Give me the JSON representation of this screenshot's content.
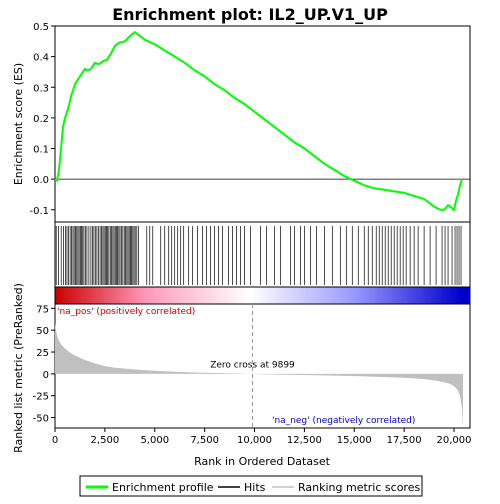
{
  "chart_data": {
    "type": "line",
    "title": "Enrichment plot: IL2_UP.V1_UP",
    "xlabel": "Rank in Ordered Dataset",
    "xlim": [
      0,
      20800
    ],
    "x_ticks": [
      "0",
      "2,500",
      "5,000",
      "7,500",
      "10,000",
      "12,500",
      "15,000",
      "17,500",
      "20,000"
    ],
    "x_tick_values": [
      0,
      2500,
      5000,
      7500,
      10000,
      12500,
      15000,
      17500,
      20000
    ],
    "top_panel": {
      "ylabel": "Enrichment score (ES)",
      "ylim": [
        -0.14,
        0.5
      ],
      "y_ticks": [
        "-0.1",
        "0.0",
        "0.1",
        "0.2",
        "0.3",
        "0.4",
        "0.5"
      ],
      "y_tick_values": [
        -0.1,
        0.0,
        0.1,
        0.2,
        0.3,
        0.4,
        0.5
      ],
      "series": [
        {
          "name": "Enrichment profile",
          "color": "#00ff00",
          "x": [
            0,
            100,
            200,
            300,
            400,
            500,
            600,
            700,
            800,
            900,
            1000,
            1100,
            1200,
            1300,
            1400,
            1500,
            1600,
            1800,
            2000,
            2200,
            2400,
            2600,
            2800,
            3000,
            3200,
            3500,
            3800,
            4000,
            4200,
            4500,
            5000,
            5500,
            6000,
            6500,
            7000,
            7500,
            8000,
            8500,
            9000,
            9500,
            10000,
            10500,
            11000,
            11500,
            12000,
            12500,
            13000,
            13500,
            14000,
            14500,
            15000,
            15500,
            16000,
            16500,
            17000,
            17500,
            18000,
            18500,
            19000,
            19300,
            19500,
            19700,
            19900,
            20000,
            20100,
            20200,
            20300,
            20400
          ],
          "values": [
            0.0,
            -0.005,
            0.03,
            0.1,
            0.17,
            0.2,
            0.22,
            0.24,
            0.27,
            0.29,
            0.31,
            0.32,
            0.33,
            0.34,
            0.35,
            0.36,
            0.355,
            0.36,
            0.38,
            0.375,
            0.385,
            0.39,
            0.41,
            0.435,
            0.445,
            0.45,
            0.47,
            0.48,
            0.47,
            0.455,
            0.44,
            0.42,
            0.4,
            0.38,
            0.355,
            0.335,
            0.31,
            0.29,
            0.265,
            0.245,
            0.22,
            0.195,
            0.17,
            0.145,
            0.12,
            0.1,
            0.075,
            0.05,
            0.03,
            0.01,
            -0.005,
            -0.02,
            -0.03,
            -0.035,
            -0.04,
            -0.045,
            -0.055,
            -0.065,
            -0.09,
            -0.1,
            -0.1,
            -0.085,
            -0.095,
            -0.1,
            -0.07,
            -0.05,
            -0.02,
            0.0
          ]
        }
      ]
    },
    "hits": {
      "name": "Hits",
      "positions": [
        60,
        180,
        310,
        420,
        520,
        600,
        680,
        760,
        830,
        900,
        960,
        1020,
        1090,
        1150,
        1210,
        1270,
        1330,
        1390,
        1450,
        1520,
        1600,
        1700,
        1800,
        1880,
        1950,
        2020,
        2100,
        2180,
        2260,
        2330,
        2400,
        2460,
        2520,
        2580,
        2640,
        2700,
        2770,
        2840,
        2900,
        2960,
        3020,
        3080,
        3140,
        3200,
        3260,
        3330,
        3400,
        3470,
        3540,
        3600,
        3660,
        3720,
        3780,
        3840,
        3900,
        3960,
        4020,
        4100,
        4180,
        4600,
        4750,
        4900,
        5300,
        5500,
        5700,
        5850,
        6000,
        6150,
        6300,
        6450,
        6700,
        6900,
        7150,
        7400,
        7600,
        7800,
        8000,
        8200,
        8400,
        8700,
        8900,
        9100,
        9300,
        9500,
        9800,
        10300,
        10600,
        11000,
        11300,
        11800,
        12000,
        12300,
        12500,
        12800,
        13100,
        13500,
        13900,
        14300,
        14600,
        14900,
        15200,
        15500,
        15700,
        15900,
        16100,
        16250,
        16400,
        16550,
        16700,
        16850,
        17000,
        17150,
        17300,
        17450,
        17600,
        17800,
        18000,
        18200,
        18500,
        18800,
        19100,
        19400,
        19550,
        19700,
        19900,
        20050,
        20150,
        20250,
        20350
      ]
    },
    "ranking_bar": {
      "gradient_colors": [
        "#cc0000",
        "#ff99bb",
        "#ffffff",
        "#9999ff",
        "#0000cc"
      ],
      "label_pos": "'na_pos' (positively correlated)",
      "label_neg": "'na_neg' (negatively correlated)",
      "label_pos_color": "#cc0000",
      "label_neg_color": "#0000cc"
    },
    "bottom_panel": {
      "ylabel": "Ranked list metric (PreRanked)",
      "ylim": [
        -62,
        80
      ],
      "y_ticks": [
        "-50",
        "-25",
        "0",
        "25",
        "50",
        "75"
      ],
      "y_tick_values": [
        -50,
        -25,
        0,
        25,
        50,
        75
      ],
      "series": [
        {
          "name": "Ranking metric scores",
          "color": "#c0c0c0",
          "x": [
            0,
            50,
            100,
            200,
            300,
            500,
            700,
            1000,
            1500,
            2000,
            2500,
            3000,
            4000,
            5000,
            6000,
            7000,
            8000,
            9000,
            9899,
            11000,
            12000,
            13000,
            14000,
            15000,
            16000,
            17000,
            18000,
            18500,
            19000,
            19500,
            19800,
            20000,
            20200,
            20300,
            20400,
            20450
          ],
          "values": [
            58,
            50,
            44,
            38,
            34,
            29,
            25,
            21,
            16,
            12,
            9,
            7,
            5,
            3.5,
            2.5,
            1.6,
            1.0,
            0.5,
            0,
            -0.8,
            -1.2,
            -1.6,
            -2.0,
            -2.5,
            -3.2,
            -4.0,
            -5.2,
            -6.0,
            -7.5,
            -9.5,
            -11.5,
            -14,
            -19,
            -25,
            -40,
            -62
          ]
        }
      ],
      "zero_cross_label": "Zero cross at 9899",
      "zero_cross_x": 9899
    },
    "legend": {
      "entries": [
        "Enrichment profile",
        "Hits",
        "Ranking metric scores"
      ],
      "placement": "bottom"
    }
  }
}
